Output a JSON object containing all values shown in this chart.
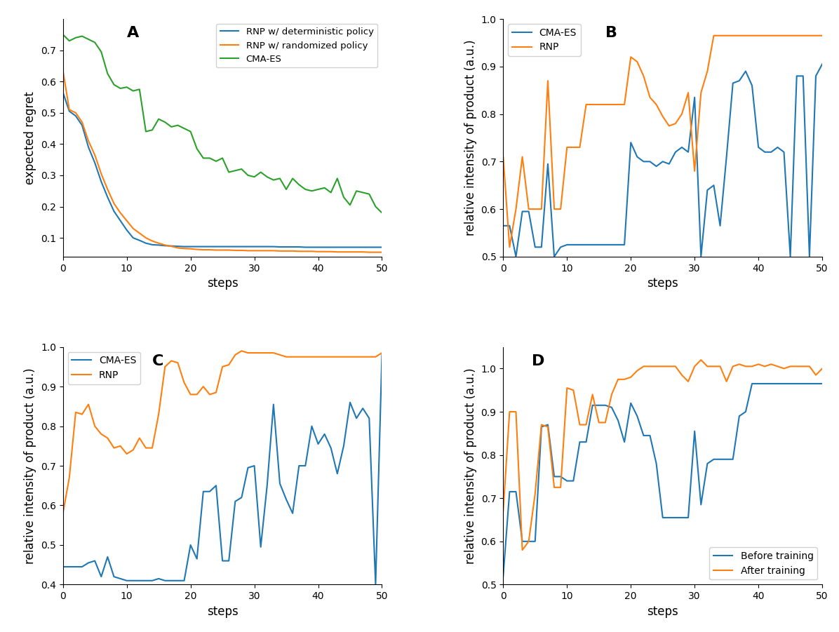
{
  "panel_A": {
    "title": "A",
    "xlabel": "steps",
    "ylabel": "expected regret",
    "xlim": [
      0,
      50
    ],
    "ylim": [
      0.04,
      0.8
    ],
    "legend": [
      "RNP w/ deterministic policy",
      "RNP w/ randomized policy",
      "CMA-ES"
    ],
    "colors": [
      "#1f77b4",
      "#ff7f0e",
      "#2ca02c"
    ],
    "rnp_det": [
      0.565,
      0.505,
      0.49,
      0.46,
      0.39,
      0.34,
      0.28,
      0.23,
      0.185,
      0.155,
      0.125,
      0.1,
      0.092,
      0.083,
      0.078,
      0.077,
      0.075,
      0.074,
      0.073,
      0.072,
      0.072,
      0.072,
      0.072,
      0.072,
      0.072,
      0.072,
      0.072,
      0.072,
      0.072,
      0.072,
      0.072,
      0.072,
      0.072,
      0.072,
      0.071,
      0.071,
      0.071,
      0.071,
      0.07,
      0.07,
      0.07,
      0.07,
      0.07,
      0.07,
      0.07,
      0.07,
      0.07,
      0.07,
      0.07,
      0.07,
      0.07
    ],
    "rnp_rand": [
      0.635,
      0.51,
      0.5,
      0.47,
      0.41,
      0.365,
      0.305,
      0.255,
      0.21,
      0.18,
      0.155,
      0.13,
      0.115,
      0.1,
      0.09,
      0.083,
      0.077,
      0.073,
      0.068,
      0.066,
      0.065,
      0.063,
      0.062,
      0.062,
      0.061,
      0.061,
      0.061,
      0.06,
      0.06,
      0.059,
      0.059,
      0.059,
      0.059,
      0.059,
      0.058,
      0.058,
      0.058,
      0.057,
      0.057,
      0.057,
      0.056,
      0.056,
      0.056,
      0.055,
      0.055,
      0.055,
      0.055,
      0.055,
      0.054,
      0.054,
      0.054
    ],
    "cmaes": [
      0.75,
      0.73,
      0.74,
      0.745,
      0.735,
      0.725,
      0.695,
      0.625,
      0.59,
      0.578,
      0.582,
      0.57,
      0.575,
      0.44,
      0.445,
      0.48,
      0.47,
      0.455,
      0.46,
      0.45,
      0.44,
      0.385,
      0.355,
      0.355,
      0.345,
      0.355,
      0.31,
      0.315,
      0.32,
      0.3,
      0.295,
      0.31,
      0.295,
      0.285,
      0.29,
      0.255,
      0.29,
      0.27,
      0.255,
      0.25,
      0.255,
      0.26,
      0.245,
      0.29,
      0.23,
      0.205,
      0.25,
      0.245,
      0.24,
      0.2,
      0.18
    ]
  },
  "panel_B": {
    "title": "B",
    "xlabel": "steps",
    "ylabel": "relative intensity of product (a.u.)",
    "xlim": [
      0,
      50
    ],
    "ylim": [
      0.5,
      1.0
    ],
    "legend": [
      "CMA-ES",
      "RNP"
    ],
    "colors": [
      "#1f77b4",
      "#ff7f0e"
    ],
    "cmaes": [
      0.565,
      0.565,
      0.5,
      0.595,
      0.595,
      0.52,
      0.52,
      0.695,
      0.5,
      0.52,
      0.525,
      0.525,
      0.525,
      0.525,
      0.525,
      0.525,
      0.525,
      0.525,
      0.525,
      0.525,
      0.74,
      0.71,
      0.7,
      0.7,
      0.69,
      0.7,
      0.695,
      0.72,
      0.73,
      0.72,
      0.835,
      0.5,
      0.64,
      0.65,
      0.565,
      0.71,
      0.865,
      0.87,
      0.89,
      0.86,
      0.73,
      0.72,
      0.72,
      0.73,
      0.72,
      0.5,
      0.88,
      0.88,
      0.5,
      0.88,
      0.905
    ],
    "rnp": [
      0.71,
      0.52,
      0.6,
      0.71,
      0.6,
      0.6,
      0.6,
      0.87,
      0.6,
      0.6,
      0.73,
      0.73,
      0.73,
      0.82,
      0.82,
      0.82,
      0.82,
      0.82,
      0.82,
      0.82,
      0.92,
      0.91,
      0.88,
      0.835,
      0.82,
      0.795,
      0.775,
      0.78,
      0.8,
      0.845,
      0.68,
      0.845,
      0.89,
      0.965,
      0.965,
      0.965,
      0.965,
      0.965,
      0.965,
      0.965,
      0.965,
      0.965,
      0.965,
      0.965,
      0.965,
      0.965,
      0.965,
      0.965,
      0.965,
      0.965,
      0.965
    ]
  },
  "panel_C": {
    "title": "C",
    "xlabel": "steps",
    "ylabel": "relative intensity of product (a.u.)",
    "xlim": [
      0,
      50
    ],
    "ylim": [
      0.4,
      1.0
    ],
    "legend": [
      "CMA-ES",
      "RNP"
    ],
    "colors": [
      "#1f77b4",
      "#ff7f0e"
    ],
    "cmaes": [
      0.445,
      0.445,
      0.445,
      0.445,
      0.455,
      0.46,
      0.42,
      0.47,
      0.42,
      0.415,
      0.41,
      0.41,
      0.41,
      0.41,
      0.41,
      0.415,
      0.41,
      0.41,
      0.41,
      0.41,
      0.5,
      0.465,
      0.635,
      0.635,
      0.65,
      0.46,
      0.46,
      0.61,
      0.62,
      0.695,
      0.7,
      0.495,
      0.65,
      0.855,
      0.655,
      0.615,
      0.58,
      0.7,
      0.7,
      0.8,
      0.755,
      0.78,
      0.745,
      0.68,
      0.75,
      0.86,
      0.82,
      0.845,
      0.82,
      0.4,
      0.98
    ],
    "rnp": [
      0.58,
      0.67,
      0.835,
      0.83,
      0.855,
      0.8,
      0.78,
      0.77,
      0.745,
      0.75,
      0.73,
      0.74,
      0.77,
      0.745,
      0.745,
      0.83,
      0.95,
      0.965,
      0.96,
      0.91,
      0.88,
      0.88,
      0.9,
      0.88,
      0.885,
      0.95,
      0.955,
      0.98,
      0.99,
      0.985,
      0.985,
      0.985,
      0.985,
      0.985,
      0.98,
      0.975,
      0.975,
      0.975,
      0.975,
      0.975,
      0.975,
      0.975,
      0.975,
      0.975,
      0.975,
      0.975,
      0.975,
      0.975,
      0.975,
      0.975,
      0.985
    ]
  },
  "panel_D": {
    "title": "D",
    "xlabel": "steps",
    "ylabel": "relative intensity of product (a.u.)",
    "xlim": [
      0,
      50
    ],
    "ylim": [
      0.5,
      1.05
    ],
    "legend": [
      "Before training",
      "After training"
    ],
    "colors": [
      "#1f77b4",
      "#ff7f0e"
    ],
    "before": [
      0.52,
      0.715,
      0.715,
      0.6,
      0.6,
      0.6,
      0.865,
      0.87,
      0.75,
      0.75,
      0.74,
      0.74,
      0.83,
      0.83,
      0.915,
      0.915,
      0.915,
      0.91,
      0.88,
      0.83,
      0.92,
      0.89,
      0.845,
      0.845,
      0.78,
      0.655,
      0.655,
      0.655,
      0.655,
      0.655,
      0.855,
      0.685,
      0.78,
      0.79,
      0.79,
      0.79,
      0.79,
      0.89,
      0.9,
      0.965,
      0.965,
      0.965,
      0.965,
      0.965,
      0.965,
      0.965,
      0.965,
      0.965,
      0.965,
      0.965,
      0.965
    ],
    "after": [
      0.67,
      0.9,
      0.9,
      0.58,
      0.6,
      0.71,
      0.87,
      0.865,
      0.725,
      0.725,
      0.955,
      0.95,
      0.87,
      0.87,
      0.94,
      0.875,
      0.875,
      0.94,
      0.975,
      0.975,
      0.98,
      0.995,
      1.005,
      1.005,
      1.005,
      1.005,
      1.005,
      1.005,
      0.985,
      0.97,
      1.005,
      1.02,
      1.005,
      1.005,
      1.005,
      0.97,
      1.005,
      1.01,
      1.005,
      1.005,
      1.01,
      1.005,
      1.01,
      1.005,
      1.0,
      1.005,
      1.005,
      1.005,
      1.005,
      0.985,
      1.0
    ]
  }
}
